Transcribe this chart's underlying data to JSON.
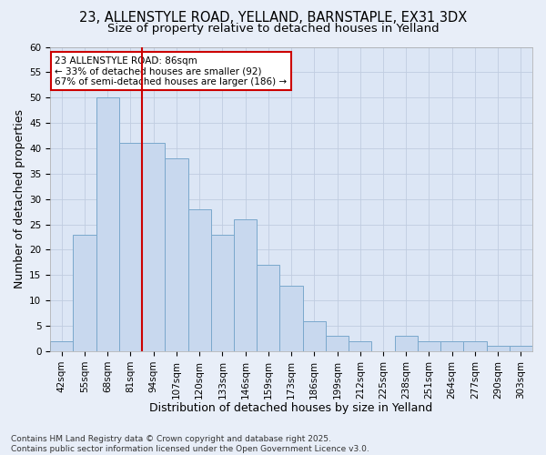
{
  "title1": "23, ALLENSTYLE ROAD, YELLAND, BARNSTAPLE, EX31 3DX",
  "title2": "Size of property relative to detached houses in Yelland",
  "xlabel": "Distribution of detached houses by size in Yelland",
  "ylabel": "Number of detached properties",
  "categories": [
    "42sqm",
    "55sqm",
    "68sqm",
    "81sqm",
    "94sqm",
    "107sqm",
    "120sqm",
    "133sqm",
    "146sqm",
    "159sqm",
    "173sqm",
    "186sqm",
    "199sqm",
    "212sqm",
    "225sqm",
    "238sqm",
    "251sqm",
    "264sqm",
    "277sqm",
    "290sqm",
    "303sqm"
  ],
  "values": [
    2,
    23,
    50,
    41,
    41,
    38,
    28,
    23,
    26,
    17,
    13,
    6,
    3,
    2,
    0,
    3,
    2,
    2,
    2,
    1,
    1
  ],
  "bar_color": "#c8d8ee",
  "bar_edge_color": "#7aа8cc",
  "bar_width": 1.0,
  "vline_x": 3.5,
  "vline_color": "#cc0000",
  "annotation_text": "23 ALLENSTYLE ROAD: 86sqm\n← 33% of detached houses are smaller (92)\n67% of semi-detached houses are larger (186) →",
  "annotation_box_color": "#ffffff",
  "annotation_box_edge": "#cc0000",
  "ylim": [
    0,
    60
  ],
  "yticks": [
    0,
    5,
    10,
    15,
    20,
    25,
    30,
    35,
    40,
    45,
    50,
    55,
    60
  ],
  "bg_color": "#e8eef8",
  "plot_bg": "#dce6f5",
  "footer": "Contains HM Land Registry data © Crown copyright and database right 2025.\nContains public sector information licensed under the Open Government Licence v3.0.",
  "title_fontsize": 10.5,
  "subtitle_fontsize": 9.5,
  "axis_label_fontsize": 9,
  "tick_fontsize": 7.5,
  "footer_fontsize": 6.5
}
